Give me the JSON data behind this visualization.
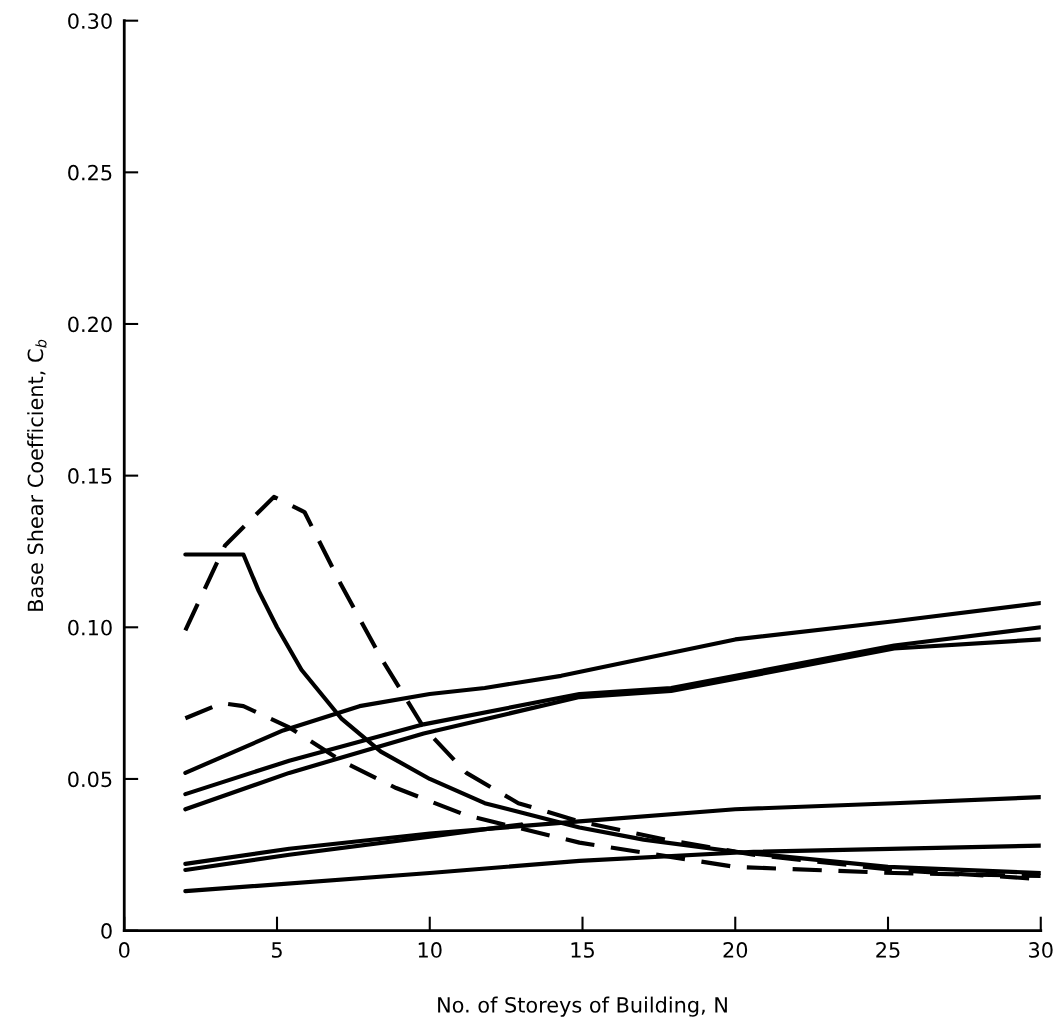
{
  "chart_data": {
    "type": "line",
    "xlabel": "No. of Storeys of Building, N",
    "ylabel": "Base Shear Coefficient, C$_{b}$",
    "xlim": [
      0,
      30
    ],
    "ylim": [
      0,
      0.3
    ],
    "xticks": [
      0,
      5,
      10,
      15,
      20,
      25,
      30
    ],
    "yticks": [
      0,
      0.05,
      {
        "value": 0.1,
        "label": "0.10"
      },
      0.15,
      {
        "value": 0.2,
        "label": "0.20"
      },
      0.25,
      {
        "value": 0.3,
        "label": "0.30"
      }
    ],
    "grid": false,
    "legend": false,
    "marker": "none",
    "series": [
      {
        "color": "#000000",
        "line_style": "solid",
        "x": [
          2,
          5.2,
          7.7,
          10,
          11.8,
          14.3,
          20,
          25.2,
          30
        ],
        "values": [
          0.052,
          0.066,
          0.074,
          0.078,
          0.08,
          0.084,
          0.096,
          0.102,
          0.108
        ]
      },
      {
        "color": "#000000",
        "line_style": "solid",
        "x": [
          2,
          5.4,
          9.8,
          14.9,
          17.9,
          25.2,
          30
        ],
        "values": [
          0.045,
          0.056,
          0.068,
          0.078,
          0.08,
          0.094,
          0.1
        ]
      },
      {
        "color": "#000000",
        "line_style": "solid",
        "x": [
          2,
          5.4,
          9.8,
          14.9,
          17.9,
          25.2,
          30
        ],
        "values": [
          0.04,
          0.052,
          0.065,
          0.077,
          0.079,
          0.093,
          0.096
        ]
      },
      {
        "color": "#000000",
        "line_style": "solid",
        "x": [
          2,
          5.4,
          10,
          14.9,
          20,
          25.2,
          30
        ],
        "values": [
          0.022,
          0.027,
          0.032,
          0.036,
          0.04,
          0.042,
          0.044
        ]
      },
      {
        "color": "#000000",
        "line_style": "solid",
        "x": [
          2,
          5.4,
          10,
          13
        ],
        "values": [
          0.02,
          0.025,
          0.031,
          0.035
        ]
      },
      {
        "color": "#000000",
        "line_style": "solid",
        "x": [
          2,
          10,
          14.9,
          20.6,
          30
        ],
        "values": [
          0.013,
          0.019,
          0.023,
          0.026,
          0.028
        ]
      },
      {
        "color": "#000000",
        "line_style": "dashed",
        "x": [
          2,
          3.3,
          4.9,
          5.9,
          7.1,
          8.4,
          9.8,
          11.2,
          12.9,
          14.9,
          17.7,
          20.6,
          25.2,
          30
        ],
        "values": [
          0.099,
          0.127,
          0.143,
          0.138,
          0.114,
          0.09,
          0.067,
          0.052,
          0.042,
          0.036,
          0.03,
          0.025,
          0.02,
          0.017
        ]
      },
      {
        "color": "#000000",
        "line_style": "solid",
        "x": [
          2,
          3.9,
          4.4,
          5.0,
          5.8,
          7.1,
          8.4,
          10,
          11.8,
          14.9,
          17,
          20,
          25,
          30
        ],
        "values": [
          0.124,
          0.124,
          0.112,
          0.1,
          0.086,
          0.07,
          0.059,
          0.05,
          0.042,
          0.034,
          0.03,
          0.026,
          0.021,
          0.019
        ]
      },
      {
        "color": "#000000",
        "line_style": "dashed",
        "x": [
          2,
          3.2,
          3.9,
          5.4,
          7.1,
          8.9,
          11.2,
          14.9,
          20,
          25.2,
          30
        ],
        "values": [
          0.07,
          0.075,
          0.074,
          0.067,
          0.056,
          0.047,
          0.038,
          0.029,
          0.021,
          0.019,
          0.018
        ]
      }
    ]
  }
}
